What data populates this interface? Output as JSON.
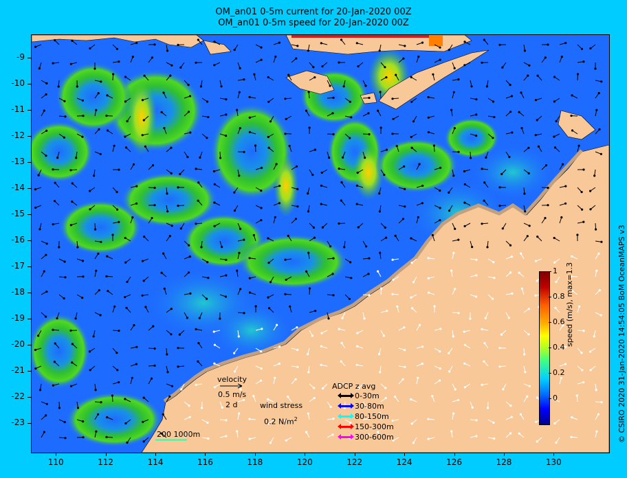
{
  "title_line1": "OM_an01 0-5m current for 20-Jan-2020 00Z",
  "title_line2": "OM_an01 0-5m speed for 20-Jan-2020 00Z",
  "y_ticks": [
    "-9",
    "-10",
    "-11",
    "-12",
    "-13",
    "-14",
    "-15",
    "-16",
    "-17",
    "-18",
    "-19",
    "-20",
    "-21",
    "-22",
    "-23"
  ],
  "x_ticks": [
    "110",
    "112",
    "114",
    "116",
    "118",
    "120",
    "122",
    "124",
    "126",
    "128",
    "130"
  ],
  "map_extent": {
    "lon": [
      109,
      132.2
    ],
    "lat": [
      -24.1,
      -8.1
    ]
  },
  "velocity_legend": {
    "label": "velocity",
    "speed": "0.5 m/s",
    "duration": "2 d"
  },
  "wind_legend": {
    "label": "wind stress",
    "value": "0.2 N/m",
    "exp": "2"
  },
  "adcp": {
    "title": "ADCP z avg",
    "rows": [
      {
        "label": "0-30m",
        "color": "#000000"
      },
      {
        "label": "30-80m",
        "color": "#0000ff"
      },
      {
        "label": "80-150m",
        "color": "#00ffff"
      },
      {
        "label": "150-300m",
        "color": "#ff0000"
      },
      {
        "label": "300-600m",
        "color": "#ff00ff"
      }
    ]
  },
  "scale_bar": "200  1000m",
  "colorbar": {
    "label": "speed (m/s),  max=1.3",
    "ticks": [
      "1",
      "0.8",
      "0.6",
      "0.4",
      "0.2",
      "0"
    ],
    "range": [
      -0.2,
      1.0
    ]
  },
  "credit": "© CSIRO 2020   31-Jan-2020 14:54:05 BoM OceanMAPS v3",
  "colors": {
    "frame": "#00ccff",
    "land": "#f8c898",
    "shelf": "#c0a080",
    "ocean_low": "#1e6cff",
    "ocean_mid": "#18b0c8",
    "eddy": "#30c030",
    "jet": "#ffd000"
  }
}
